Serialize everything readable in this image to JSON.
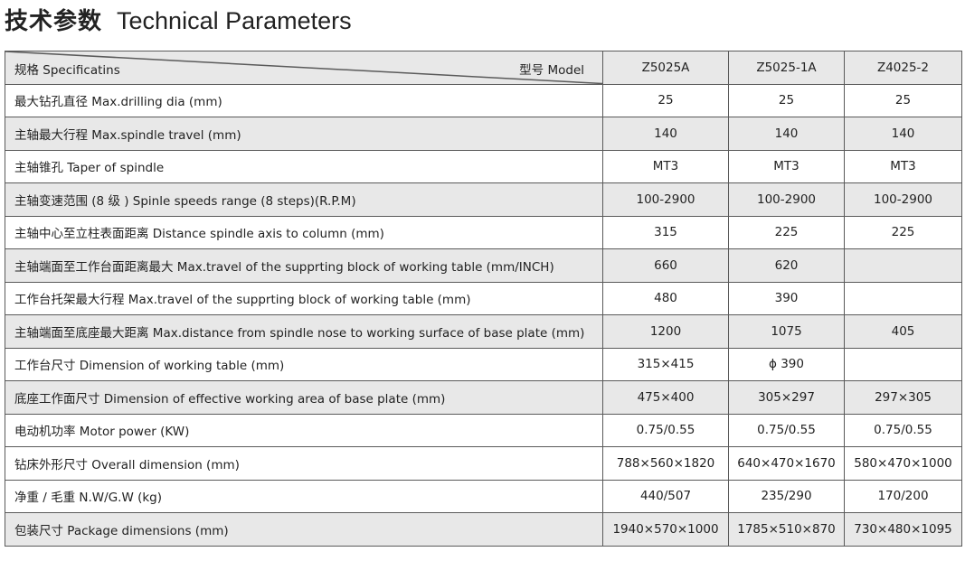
{
  "title": {
    "cn": "技术参数",
    "en": "Technical Parameters"
  },
  "header": {
    "spec": "规格  Specificatins",
    "model": "型号  Model",
    "models": [
      "Z5025A",
      "Z5025-1A",
      "Z4025-2"
    ]
  },
  "colors": {
    "shade": "#e8e8e8",
    "border": "#5a5a5a"
  },
  "rows": [
    {
      "label": "最大钻孔直径  Max.drilling dia (mm)",
      "values": [
        "25",
        "25",
        "25"
      ],
      "shaded": false
    },
    {
      "label": "主轴最大行程  Max.spindle travel (mm)",
      "values": [
        "140",
        "140",
        "140"
      ],
      "shaded": true
    },
    {
      "label": "主轴锥孔  Taper of spindle",
      "values": [
        "MT3",
        "MT3",
        "MT3"
      ],
      "shaded": false
    },
    {
      "label": "主轴变速范围 (8 级 )  Spinle speeds range (8 steps)(R.P.M)",
      "values": [
        "100-2900",
        "100-2900",
        "100-2900"
      ],
      "shaded": true
    },
    {
      "label": "主轴中心至立柱表面距离  Distance spindle axis to column (mm)",
      "values": [
        "315",
        "225",
        "225"
      ],
      "shaded": false
    },
    {
      "label": "主轴端面至工作台面距离最大  Max.travel of the supprting block of working table (mm/INCH)",
      "values": [
        "660",
        "620",
        ""
      ],
      "shaded": true
    },
    {
      "label": "工作台托架最大行程  Max.travel of the supprting block of working table (mm)",
      "values": [
        "480",
        "390",
        ""
      ],
      "shaded": false
    },
    {
      "label": "主轴端面至底座最大距离  Max.distance from spindle nose to working surface of base plate (mm)",
      "values": [
        "1200",
        "1075",
        "405"
      ],
      "shaded": true
    },
    {
      "label": "工作台尺寸  Dimension of working table (mm)",
      "values": [
        "315×415",
        "ϕ 390",
        ""
      ],
      "shaded": false
    },
    {
      "label": "底座工作面尺寸  Dimension of effective working area of base plate (mm)",
      "values": [
        "475×400",
        "305×297",
        "297×305"
      ],
      "shaded": true
    },
    {
      "label": "电动机功率  Motor power (KW)",
      "values": [
        "0.75/0.55",
        "0.75/0.55",
        "0.75/0.55"
      ],
      "shaded": false
    },
    {
      "label": "钻床外形尺寸  Overall dimension (mm)",
      "values": [
        "788×560×1820",
        "640×470×1670",
        "580×470×1000"
      ],
      "shaded": false
    },
    {
      "label": "净重 / 毛重  N.W/G.W (kg)",
      "values": [
        "440/507",
        "235/290",
        "170/200"
      ],
      "shaded": false
    },
    {
      "label": "包装尺寸  Package dimensions (mm)",
      "values": [
        "1940×570×1000",
        "1785×510×870",
        "730×480×1095"
      ],
      "shaded": true
    }
  ]
}
